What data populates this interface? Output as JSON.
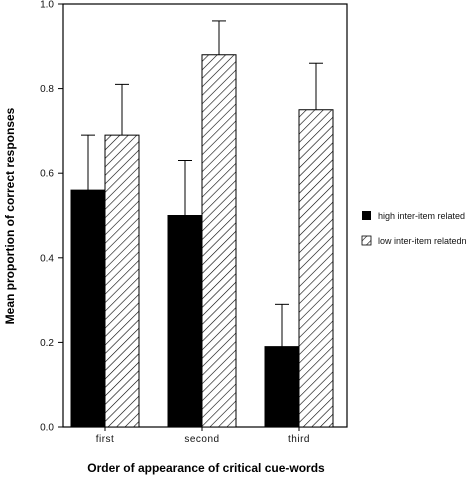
{
  "chart_data": {
    "type": "bar",
    "title": "",
    "xlabel": "Order of appearance of critical cue-words",
    "ylabel": "Mean proportion of correct responses",
    "ylim": [
      0,
      1.0
    ],
    "yticks": [
      "0.0",
      "0.2",
      "0.4",
      "0.6",
      "0.8",
      "1.0"
    ],
    "categories": [
      "first",
      "second",
      "third"
    ],
    "series": [
      {
        "name": "high inter-item related",
        "fill": "solid",
        "color": "#000000",
        "values": [
          0.56,
          0.5,
          0.19
        ],
        "error_upper": [
          0.69,
          0.63,
          0.29
        ]
      },
      {
        "name": "low inter-item relatedn",
        "fill": "hatched",
        "color": "#000000",
        "values": [
          0.69,
          0.88,
          0.75
        ],
        "error_upper": [
          0.81,
          0.96,
          0.86
        ]
      }
    ],
    "legend_position": "right",
    "grid": false
  }
}
